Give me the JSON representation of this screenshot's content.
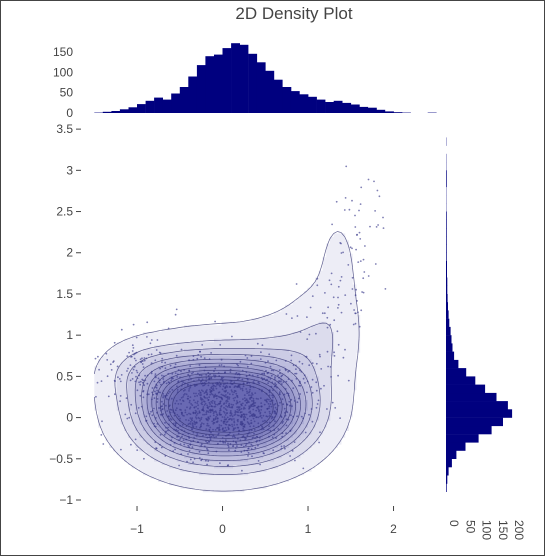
{
  "chart_data": [
    {
      "type": "scatter",
      "subtype": "2d-density-contour",
      "title": "2D Density Plot",
      "xlabel": "",
      "ylabel": "",
      "xlim": [
        -1.55,
        2.45
      ],
      "ylim": [
        -1.0,
        3.55
      ],
      "xticks": [
        -1,
        0,
        1,
        2
      ],
      "yticks": [
        -1,
        -0.5,
        0,
        0.5,
        1,
        1.5,
        2,
        2.5,
        3,
        3.5
      ],
      "grid": false,
      "colors": {
        "points": "#3a3a8c",
        "contour_line": "#2b2b6b",
        "contour_fill": "#0a0a8c"
      },
      "density_center": [
        0.0,
        0.1
      ],
      "contour_levels": 12
    },
    {
      "type": "bar",
      "subtype": "histogram-x",
      "color": "#00007f",
      "yticks": [
        0,
        50,
        100,
        150
      ],
      "ylim": [
        0,
        175
      ],
      "bin_start": -1.5,
      "bin_width": 0.1,
      "counts": [
        1,
        3,
        5,
        9,
        14,
        22,
        30,
        38,
        33,
        48,
        64,
        90,
        118,
        140,
        144,
        160,
        172,
        168,
        146,
        125,
        104,
        82,
        64,
        54,
        46,
        40,
        33,
        27,
        30,
        25,
        21,
        15,
        13,
        8,
        4,
        2,
        1,
        0,
        0,
        1
      ]
    },
    {
      "type": "bar",
      "subtype": "histogram-y",
      "orientation": "horizontal",
      "color": "#00007f",
      "xticks": [
        0,
        50,
        100,
        150,
        200
      ],
      "xlim": [
        0,
        215
      ],
      "bin_start": -0.9,
      "bin_width": 0.1,
      "counts": [
        2,
        4,
        8,
        18,
        32,
        60,
        100,
        140,
        175,
        203,
        190,
        155,
        120,
        90,
        62,
        38,
        25,
        20,
        17,
        14,
        10,
        8,
        6,
        5,
        4,
        4,
        3,
        3,
        2,
        2,
        2,
        2,
        2,
        2,
        1,
        1,
        1,
        2,
        2,
        1,
        1,
        0,
        1
      ]
    }
  ]
}
